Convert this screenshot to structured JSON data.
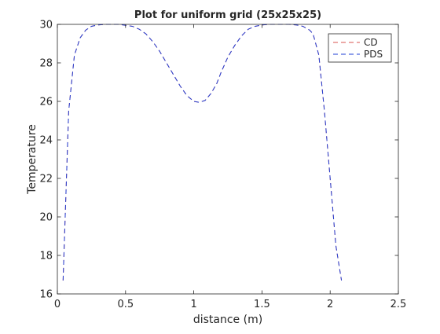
{
  "chart_data": {
    "type": "line",
    "title": "Plot for uniform grid (25x25x25)",
    "xlabel": "distance (m)",
    "ylabel": "Temperature",
    "xlim": [
      0,
      2.5
    ],
    "ylim": [
      16,
      30
    ],
    "xticks": [
      0,
      0.5,
      1,
      1.5,
      2,
      2.5
    ],
    "xtick_labels": [
      "0",
      "0.5",
      "1",
      "1.5",
      "2",
      "2.5"
    ],
    "yticks": [
      16,
      18,
      20,
      22,
      24,
      26,
      28,
      30
    ],
    "ytick_labels": [
      "16",
      "18",
      "20",
      "22",
      "24",
      "26",
      "28",
      "30"
    ],
    "grid": false,
    "legend_position": "top-right",
    "x": [
      0.042,
      0.083,
      0.125,
      0.167,
      0.208,
      0.25,
      0.3,
      0.35,
      0.4,
      0.45,
      0.5,
      0.55,
      0.6,
      0.65,
      0.7,
      0.75,
      0.8,
      0.85,
      0.9,
      0.95,
      1.0,
      1.042,
      1.083,
      1.125,
      1.167,
      1.2,
      1.25,
      1.3,
      1.35,
      1.4,
      1.45,
      1.5,
      1.55,
      1.6,
      1.65,
      1.7,
      1.75,
      1.8,
      1.85,
      1.875,
      1.917,
      1.958,
      2.0,
      2.042,
      2.083
    ],
    "series": [
      {
        "name": "CD",
        "color": "#d9534f",
        "style": "dashed",
        "values": [
          16.7,
          25.5,
          28.4,
          29.3,
          29.7,
          29.9,
          29.97,
          30.0,
          30.0,
          30.0,
          29.95,
          29.9,
          29.75,
          29.5,
          29.1,
          28.6,
          28.0,
          27.4,
          26.8,
          26.3,
          26.0,
          25.95,
          26.05,
          26.4,
          26.9,
          27.5,
          28.3,
          28.9,
          29.4,
          29.75,
          29.9,
          29.97,
          30.0,
          30.0,
          30.0,
          30.0,
          29.97,
          29.9,
          29.7,
          29.5,
          28.4,
          25.5,
          22.0,
          18.5,
          16.7
        ]
      },
      {
        "name": "PDS",
        "color": "#1f3fd6",
        "style": "dashed",
        "values": [
          16.7,
          25.5,
          28.4,
          29.3,
          29.7,
          29.9,
          29.97,
          30.0,
          30.0,
          30.0,
          29.95,
          29.9,
          29.75,
          29.5,
          29.1,
          28.6,
          28.0,
          27.4,
          26.8,
          26.3,
          26.0,
          25.95,
          26.05,
          26.4,
          26.9,
          27.5,
          28.3,
          28.9,
          29.4,
          29.75,
          29.9,
          29.97,
          30.0,
          30.0,
          30.0,
          30.0,
          29.97,
          29.9,
          29.7,
          29.5,
          28.4,
          25.5,
          22.0,
          18.5,
          16.7
        ]
      }
    ]
  }
}
